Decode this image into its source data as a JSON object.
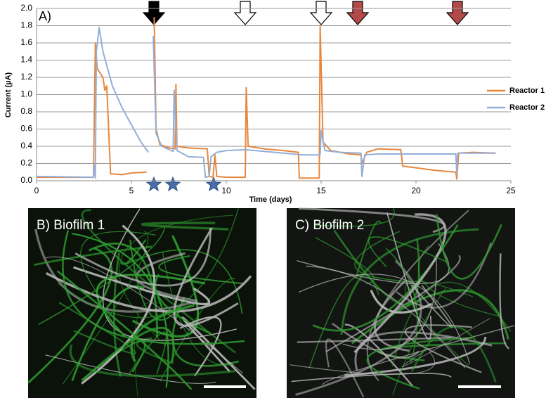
{
  "chart_data": {
    "type": "line",
    "panel": "A)",
    "y_label": "Current (µA)",
    "x_label": "Time (days)",
    "xlim": [
      0,
      25
    ],
    "xticks": [
      0,
      5,
      10,
      15,
      20,
      25
    ],
    "ylim": [
      0,
      2.0
    ],
    "yticks": [
      {
        "value": 0,
        "label": "0.0"
      },
      0.2,
      0.4,
      0.6,
      0.8,
      {
        "value": 1,
        "label": "1.0"
      },
      1.2,
      1.4,
      1.6,
      1.8,
      {
        "value": 2,
        "label": "2.0"
      }
    ],
    "grid": true,
    "legend": "right",
    "series": [
      {
        "name": "Reactor 1",
        "color": "#e8873c",
        "x": [
          0,
          3.0,
          3.1,
          3.2,
          3.5,
          3.6,
          3.7,
          3.8,
          3.9,
          4.5,
          5.0,
          5.8,
          6.0,
          6.2,
          6.3,
          6.5,
          7.0,
          7.3,
          7.35,
          7.4,
          8,
          9.0,
          9.1,
          9.3,
          9.4,
          9.5,
          10,
          11.0,
          11.05,
          11.15,
          12,
          13,
          13.8,
          13.85,
          14.9,
          14.95,
          15.1,
          15.5,
          16.5,
          17.1,
          17.15,
          17.4,
          18,
          19.2,
          19.3,
          20,
          21,
          22.1,
          22.15,
          22.25,
          23,
          24.2
        ],
        "values": [
          0.04,
          0.04,
          1.6,
          1.3,
          1.2,
          1.05,
          1.1,
          0.6,
          0.08,
          0.07,
          0.09,
          0.1,
          null,
          1.9,
          0.6,
          0.42,
          0.38,
          0.37,
          1.12,
          0.4,
          0.38,
          0.37,
          0.05,
          0.04,
          0.3,
          0.05,
          0.04,
          0.04,
          1.08,
          0.4,
          0.37,
          0.35,
          0.33,
          0.03,
          0.03,
          1.8,
          0.45,
          0.35,
          0.31,
          0.3,
          0.2,
          0.33,
          0.37,
          0.36,
          0.17,
          0.15,
          0.12,
          0.1,
          0.02,
          0.32,
          0.33,
          0.32
        ]
      },
      {
        "name": "Reactor 2",
        "color": "#94aed8",
        "x": [
          0,
          3.0,
          3.05,
          3.1,
          3.15,
          3.3,
          3.5,
          4,
          4.5,
          5,
          5.5,
          5.9,
          6.0,
          6.15,
          6.3,
          6.6,
          7.0,
          7.2,
          7.25,
          7.4,
          8,
          8.8,
          8.9,
          9.1,
          9.2,
          9.5,
          10,
          11,
          12,
          13,
          14,
          14.95,
          15.0,
          15.2,
          16,
          17.1,
          17.15,
          17.3,
          18,
          20,
          22.1,
          22.15,
          22.2,
          24.2
        ],
        "values": [
          0.05,
          0.04,
          0.18,
          0.03,
          1.5,
          1.78,
          1.5,
          1.1,
          0.85,
          0.65,
          0.45,
          0.33,
          null,
          1.68,
          0.55,
          0.4,
          0.36,
          0.34,
          1.05,
          0.35,
          0.28,
          0.27,
          0.04,
          0.05,
          0.28,
          0.33,
          0.35,
          0.36,
          0.34,
          0.32,
          0.3,
          0.3,
          0.58,
          0.35,
          0.33,
          0.32,
          0.05,
          0.3,
          0.31,
          0.31,
          0.31,
          0.08,
          0.32,
          0.32
        ]
      }
    ]
  },
  "images": [
    {
      "label": "B) Biofilm 1"
    },
    {
      "label": "C) Biofilm 2"
    }
  ]
}
